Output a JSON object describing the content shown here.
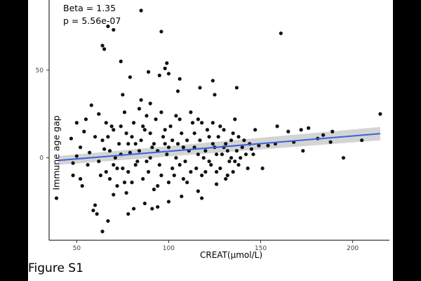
{
  "caption": "Figure S1",
  "annotations": {
    "beta": "Beta = 1.35",
    "p": "p = 5.56e-07"
  },
  "chart_data": {
    "type": "scatter",
    "xlabel": "CREAT(µmol/L)",
    "ylabel": "Immune age gap",
    "xlim": [
      35,
      220
    ],
    "ylim": [
      -47,
      90
    ],
    "x_ticks": [
      50,
      100,
      150,
      200
    ],
    "y_ticks": [
      0,
      50
    ],
    "grid": false,
    "point_color": "#111111",
    "fit_color": "#3a62d9",
    "band_color": "#c9c9c9",
    "fit": {
      "x": [
        40,
        215
      ],
      "y": [
        -1.5,
        13.8
      ],
      "band_low": [
        -4.0,
        10.0
      ],
      "band_high": [
        1.0,
        17.6
      ]
    },
    "points": [
      [
        85,
        84
      ],
      [
        96,
        72
      ],
      [
        161,
        71
      ],
      [
        67,
        75
      ],
      [
        70,
        73
      ],
      [
        64,
        64
      ],
      [
        65,
        62
      ],
      [
        74,
        55
      ],
      [
        99,
        54
      ],
      [
        98,
        51
      ],
      [
        95,
        47
      ],
      [
        100,
        48
      ],
      [
        89,
        49
      ],
      [
        79,
        46
      ],
      [
        106,
        45
      ],
      [
        124,
        44
      ],
      [
        137,
        40
      ],
      [
        117,
        40
      ],
      [
        105,
        38
      ],
      [
        125,
        36
      ],
      [
        75,
        36
      ],
      [
        85,
        33
      ],
      [
        90,
        31
      ],
      [
        215,
        25
      ],
      [
        176,
        17
      ],
      [
        172,
        16
      ],
      [
        189,
        15
      ],
      [
        159,
        18
      ],
      [
        165,
        15
      ],
      [
        184,
        13
      ],
      [
        181,
        11
      ],
      [
        168,
        9
      ],
      [
        188,
        9
      ],
      [
        158,
        8
      ],
      [
        149,
        7
      ],
      [
        145,
        5
      ],
      [
        154,
        7
      ],
      [
        173,
        4
      ],
      [
        205,
        10
      ],
      [
        195,
        0
      ],
      [
        151,
        -6
      ],
      [
        135,
        -8
      ],
      [
        131,
        -12
      ],
      [
        39,
        -23
      ],
      [
        53,
        -16
      ],
      [
        48,
        -10
      ],
      [
        60,
        -27
      ],
      [
        59,
        -30
      ],
      [
        61,
        -32
      ],
      [
        67,
        -36
      ],
      [
        64,
        -42
      ],
      [
        78,
        -32
      ],
      [
        81,
        -29
      ],
      [
        94,
        -28
      ],
      [
        91,
        -29
      ],
      [
        87,
        -26
      ],
      [
        100,
        -25
      ],
      [
        118,
        -23
      ],
      [
        107,
        -22
      ],
      [
        116,
        -19
      ],
      [
        126,
        -15
      ],
      [
        77,
        -20
      ],
      [
        70,
        -21
      ],
      [
        48,
        -3
      ],
      [
        50,
        1
      ],
      [
        52,
        6
      ],
      [
        47,
        11
      ],
      [
        54,
        15
      ],
      [
        50,
        20
      ],
      [
        55,
        22
      ],
      [
        58,
        30
      ],
      [
        62,
        25
      ],
      [
        60,
        12
      ],
      [
        57,
        3
      ],
      [
        56,
        -4
      ],
      [
        52,
        -12
      ],
      [
        63,
        -10
      ],
      [
        65,
        5
      ],
      [
        67,
        12
      ],
      [
        69,
        18
      ],
      [
        71,
        0
      ],
      [
        73,
        8
      ],
      [
        75,
        -6
      ],
      [
        77,
        14
      ],
      [
        79,
        3
      ],
      [
        81,
        20
      ],
      [
        83,
        -2
      ],
      [
        85,
        10
      ],
      [
        87,
        16
      ],
      [
        89,
        -8
      ],
      [
        91,
        6
      ],
      [
        93,
        22
      ],
      [
        95,
        -4
      ],
      [
        97,
        12
      ],
      [
        99,
        2
      ],
      [
        101,
        18
      ],
      [
        103,
        -10
      ],
      [
        105,
        8
      ],
      [
        107,
        14
      ],
      [
        109,
        -2
      ],
      [
        111,
        4
      ],
      [
        113,
        20
      ],
      [
        115,
        -6
      ],
      [
        117,
        10
      ],
      [
        119,
        0
      ],
      [
        121,
        16
      ],
      [
        123,
        -4
      ],
      [
        125,
        6
      ],
      [
        127,
        12
      ],
      [
        129,
        2
      ],
      [
        131,
        8
      ],
      [
        133,
        -2
      ],
      [
        135,
        14
      ],
      [
        137,
        4
      ],
      [
        139,
        0
      ],
      [
        141,
        10
      ],
      [
        143,
        -6
      ],
      [
        68,
        -12
      ],
      [
        72,
        -16
      ],
      [
        76,
        26
      ],
      [
        80,
        -14
      ],
      [
        84,
        28
      ],
      [
        88,
        24
      ],
      [
        92,
        -18
      ],
      [
        96,
        26
      ],
      [
        100,
        -14
      ],
      [
        104,
        24
      ],
      [
        108,
        -12
      ],
      [
        112,
        26
      ],
      [
        116,
        22
      ],
      [
        120,
        -8
      ],
      [
        124,
        20
      ],
      [
        128,
        18
      ],
      [
        132,
        -10
      ],
      [
        136,
        22
      ],
      [
        66,
        20
      ],
      [
        70,
        -4
      ],
      [
        74,
        18
      ],
      [
        78,
        -8
      ],
      [
        82,
        8
      ],
      [
        86,
        -12
      ],
      [
        90,
        14
      ],
      [
        94,
        -16
      ],
      [
        98,
        8
      ],
      [
        102,
        -6
      ],
      [
        106,
        22
      ],
      [
        110,
        -14
      ],
      [
        114,
        6
      ],
      [
        118,
        -10
      ],
      [
        122,
        12
      ],
      [
        126,
        -8
      ],
      [
        130,
        16
      ],
      [
        134,
        0
      ],
      [
        138,
        -4
      ],
      [
        142,
        2
      ],
      [
        62,
        -2
      ],
      [
        64,
        10
      ],
      [
        66,
        -8
      ],
      [
        68,
        4
      ],
      [
        70,
        16
      ],
      [
        72,
        -6
      ],
      [
        74,
        2
      ],
      [
        76,
        -14
      ],
      [
        78,
        8
      ],
      [
        80,
        12
      ],
      [
        82,
        -4
      ],
      [
        84,
        4
      ],
      [
        86,
        18
      ],
      [
        88,
        -2
      ],
      [
        90,
        0
      ],
      [
        92,
        8
      ],
      [
        94,
        4
      ],
      [
        96,
        -10
      ],
      [
        98,
        16
      ],
      [
        100,
        6
      ],
      [
        102,
        10
      ],
      [
        104,
        0
      ],
      [
        106,
        -4
      ],
      [
        108,
        6
      ],
      [
        110,
        10
      ],
      [
        112,
        -8
      ],
      [
        114,
        14
      ],
      [
        116,
        2
      ],
      [
        118,
        20
      ],
      [
        120,
        4
      ],
      [
        122,
        -2
      ],
      [
        124,
        8
      ],
      [
        126,
        2
      ],
      [
        128,
        -6
      ],
      [
        130,
        6
      ],
      [
        132,
        4
      ],
      [
        134,
        10
      ],
      [
        136,
        -2
      ],
      [
        138,
        12
      ],
      [
        140,
        6
      ],
      [
        144,
        8
      ],
      [
        146,
        2
      ],
      [
        147,
        16
      ]
    ]
  }
}
